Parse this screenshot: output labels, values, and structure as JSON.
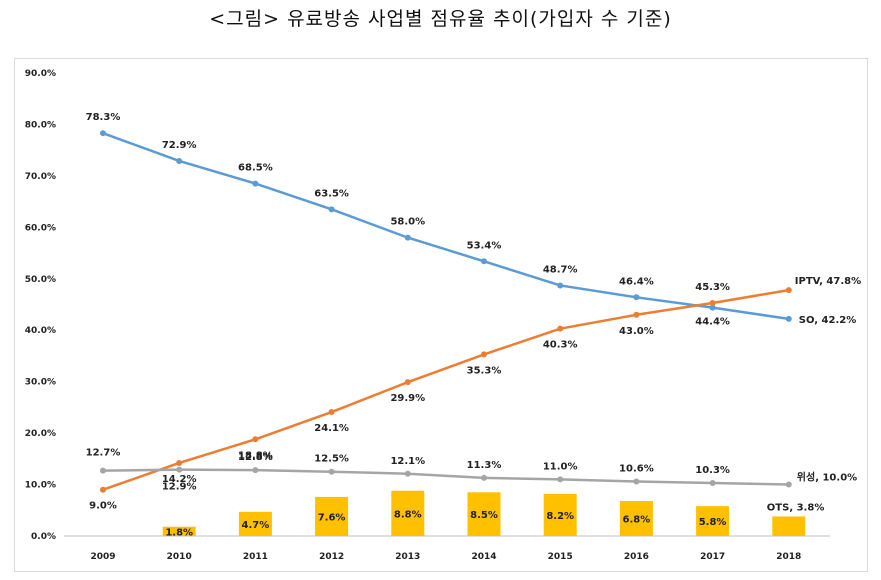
{
  "title": "<그림> 유료방송 사업별 점유율 추이(가입자 수 기준)",
  "chart_data": {
    "type": "line",
    "categories": [
      "2009",
      "2010",
      "2011",
      "2012",
      "2013",
      "2014",
      "2015",
      "2016",
      "2017",
      "2018"
    ],
    "ylim": [
      0,
      90
    ],
    "yticks": [
      "0.0%",
      "10.0%",
      "20.0%",
      "30.0%",
      "40.0%",
      "50.0%",
      "60.0%",
      "70.0%",
      "80.0%",
      "90.0%"
    ],
    "grid": false,
    "legend": "none (series labeled at line ends)",
    "series": [
      {
        "name": "SO",
        "type": "line",
        "color": "#5b9bd5",
        "values": [
          78.3,
          72.9,
          68.5,
          63.5,
          58.0,
          53.4,
          48.7,
          46.4,
          44.4,
          42.2
        ],
        "labels": [
          "78.3%",
          "72.9%",
          "68.5%",
          "63.5%",
          "58.0%",
          "53.4%",
          "48.7%",
          "46.4%",
          "44.4%",
          "SO, 42.2%"
        ]
      },
      {
        "name": "IPTV",
        "type": "line",
        "color": "#ed7d31",
        "values": [
          9.0,
          14.2,
          18.8,
          24.1,
          29.9,
          35.3,
          40.3,
          43.0,
          45.3,
          47.8
        ],
        "labels": [
          "9.0%",
          "14.2%",
          "18.8%",
          "24.1%",
          "29.9%",
          "35.3%",
          "40.3%",
          "43.0%",
          "45.3%",
          "IPTV, 47.8%"
        ]
      },
      {
        "name": "위성",
        "type": "line",
        "color": "#a5a5a5",
        "values": [
          12.7,
          12.9,
          12.8,
          12.5,
          12.1,
          11.3,
          11.0,
          10.6,
          10.3,
          10.0
        ],
        "labels": [
          "12.7%",
          "12.9%",
          "12.8%",
          "12.5%",
          "12.1%",
          "11.3%",
          "11.0%",
          "10.6%",
          "10.3%",
          "위성, 10.0%"
        ]
      },
      {
        "name": "OTS",
        "type": "bar",
        "color": "#ffc000",
        "values": [
          null,
          1.8,
          4.7,
          7.6,
          8.8,
          8.5,
          8.2,
          6.8,
          5.8,
          3.8
        ],
        "labels": [
          "",
          "1.8%",
          "4.7%",
          "7.6%",
          "8.8%",
          "8.5%",
          "8.2%",
          "6.8%",
          "5.8%",
          "OTS, 3.8%"
        ]
      }
    ]
  }
}
